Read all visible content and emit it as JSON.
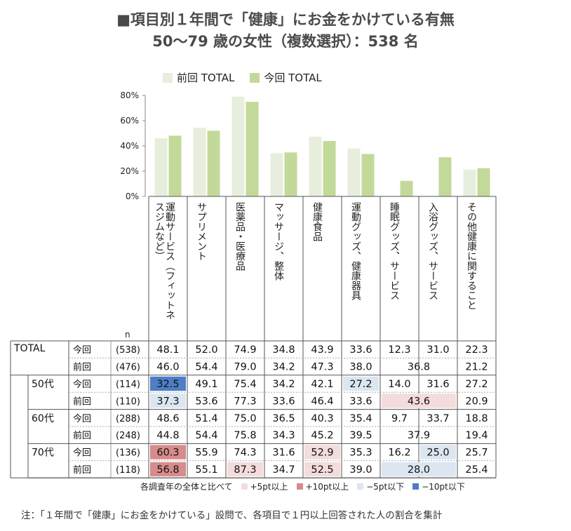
{
  "title": "■項目別１年間で「健康」にお金をかけている有無",
  "subtitle": "50〜79 歳の女性（複数選択）：538 名",
  "colors": {
    "prev_bar": "#e8eedd",
    "curr_bar": "#c3d99a",
    "plus5": "#f4dcdc",
    "plus10": "#d88b8b",
    "minus5": "#dce6f1",
    "minus10": "#4e7fc6",
    "axis": "#888888",
    "grid_line": "#222222"
  },
  "chart_data": {
    "type": "bar",
    "categories": [
      "運動サービス（フィットネ\nスジムなど）",
      "サプリメント",
      "医薬品・医療品",
      "マッサージ、整体",
      "健康食品",
      "運動グッズ、健康器具",
      "睡眠グッズ、サービス",
      "入浴グッズ、サービス",
      "その他健康に関すること"
    ],
    "series": [
      {
        "name": "前回 TOTAL",
        "values": [
          46.0,
          54.4,
          79.0,
          34.2,
          47.3,
          38.0,
          null,
          null,
          21.2
        ]
      },
      {
        "name": "今回 TOTAL",
        "values": [
          48.1,
          52.0,
          74.9,
          34.8,
          43.9,
          33.6,
          12.3,
          31.0,
          22.3
        ]
      }
    ],
    "y_ticks": [
      "0%",
      "20%",
      "40%",
      "60%",
      "80%"
    ],
    "ylim": [
      0,
      80
    ]
  },
  "table": {
    "n_label": "n",
    "rows": [
      {
        "group": "TOTAL",
        "sub": "今回",
        "n": "(538)",
        "cells": [
          "48.1",
          "52.0",
          "74.9",
          "34.8",
          "43.9",
          "33.6",
          "12.3",
          "31.0",
          "22.3"
        ],
        "hl": [
          null,
          null,
          null,
          null,
          null,
          null,
          null,
          null,
          null
        ]
      },
      {
        "group": "",
        "sub": "前回",
        "n": "(476)",
        "cells": [
          "46.0",
          "54.4",
          "79.0",
          "34.2",
          "47.3",
          "38.0",
          "36.8",
          "21.2"
        ],
        "spans": [
          1,
          1,
          1,
          1,
          1,
          1,
          2,
          1
        ],
        "hl": [
          null,
          null,
          null,
          null,
          null,
          null,
          null,
          null
        ]
      },
      {
        "group": "50代",
        "sub": "今回",
        "n": "(114)",
        "cells": [
          "32.5",
          "49.1",
          "75.4",
          "34.2",
          "42.1",
          "27.2",
          "14.0",
          "31.6",
          "27.2"
        ],
        "hl": [
          "minus10",
          null,
          null,
          null,
          null,
          "minus5",
          null,
          null,
          null
        ]
      },
      {
        "group": "",
        "sub": "前回",
        "n": "(110)",
        "cells": [
          "37.3",
          "53.6",
          "77.3",
          "33.6",
          "46.4",
          "33.6",
          "43.6",
          "20.9"
        ],
        "spans": [
          1,
          1,
          1,
          1,
          1,
          1,
          2,
          1
        ],
        "hl": [
          "minus5",
          null,
          null,
          null,
          null,
          null,
          "plus5",
          null
        ]
      },
      {
        "group": "60代",
        "sub": "今回",
        "n": "(288)",
        "cells": [
          "48.6",
          "51.4",
          "75.0",
          "36.5",
          "40.3",
          "35.4",
          "9.7",
          "33.7",
          "18.8"
        ],
        "hl": [
          null,
          null,
          null,
          null,
          null,
          null,
          null,
          null,
          null
        ]
      },
      {
        "group": "",
        "sub": "前回",
        "n": "(248)",
        "cells": [
          "44.8",
          "54.4",
          "75.8",
          "34.3",
          "45.2",
          "39.5",
          "37.9",
          "19.4"
        ],
        "spans": [
          1,
          1,
          1,
          1,
          1,
          1,
          2,
          1
        ],
        "hl": [
          null,
          null,
          null,
          null,
          null,
          null,
          null,
          null
        ]
      },
      {
        "group": "70代",
        "sub": "今回",
        "n": "(136)",
        "cells": [
          "60.3",
          "55.9",
          "74.3",
          "31.6",
          "52.9",
          "35.3",
          "16.2",
          "25.0",
          "25.7"
        ],
        "hl": [
          "plus10",
          null,
          null,
          null,
          "plus5",
          null,
          null,
          "minus5",
          null
        ]
      },
      {
        "group": "",
        "sub": "前回",
        "n": "(118)",
        "cells": [
          "56.8",
          "55.1",
          "87.3",
          "34.7",
          "52.5",
          "39.0",
          "28.0",
          "25.4"
        ],
        "spans": [
          1,
          1,
          1,
          1,
          1,
          1,
          2,
          1
        ],
        "hl": [
          "plus10",
          null,
          "plus5",
          null,
          "plus5",
          null,
          "minus5",
          null
        ]
      }
    ]
  },
  "footer_legend": {
    "lead": "各調査年の全体と比べて",
    "items": [
      {
        "key": "plus5",
        "label": "+5pt以上"
      },
      {
        "key": "plus10",
        "label": "+10pt以上"
      },
      {
        "key": "minus5",
        "label": "−5pt以下"
      },
      {
        "key": "minus10",
        "label": "−10pt以下"
      }
    ]
  },
  "note": "注：「１年間で「健康」にお金をかけている」設問で、各項目で１円以上回答された人の割合を集計"
}
